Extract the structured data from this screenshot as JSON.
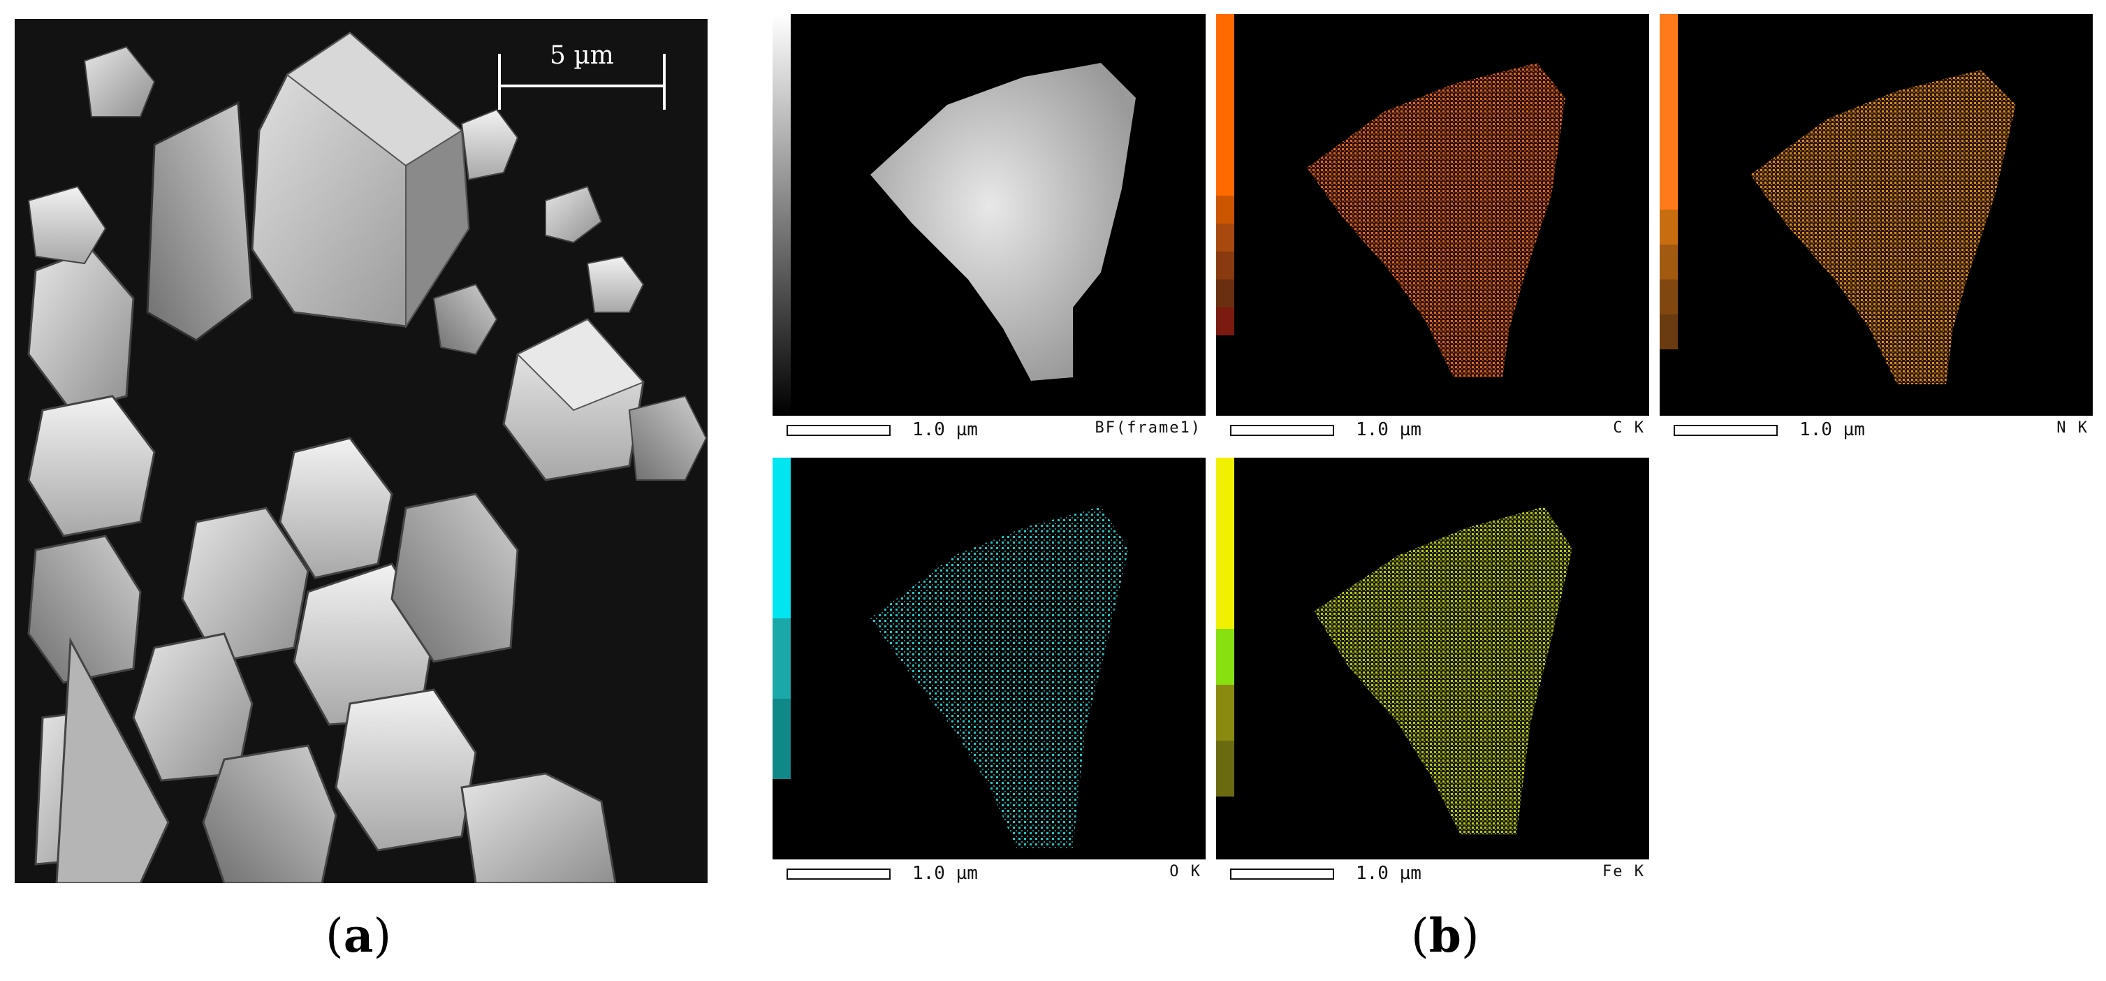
{
  "panel_a": {
    "letter_open": "(",
    "letter": "a",
    "letter_close": ")",
    "scale_label": "5 µm"
  },
  "panel_b": {
    "letter_open": "(",
    "letter": "b",
    "letter_close": ")",
    "maps": [
      {
        "id": "bf",
        "scale_label": "1.0 µm",
        "element_label": "BF(frame1)",
        "color": "#d9d9d9"
      },
      {
        "id": "c",
        "scale_label": "1.0 µm",
        "element_label": "C K",
        "color": "#e0641e"
      },
      {
        "id": "n",
        "scale_label": "1.0 µm",
        "element_label": "N K",
        "color": "#d98a1c"
      },
      {
        "id": "o",
        "scale_label": "1.0 µm",
        "element_label": "O K",
        "color": "#1fc8c8"
      },
      {
        "id": "fe",
        "scale_label": "1.0 µm",
        "element_label": "Fe K",
        "color": "#b8c41a"
      }
    ]
  }
}
